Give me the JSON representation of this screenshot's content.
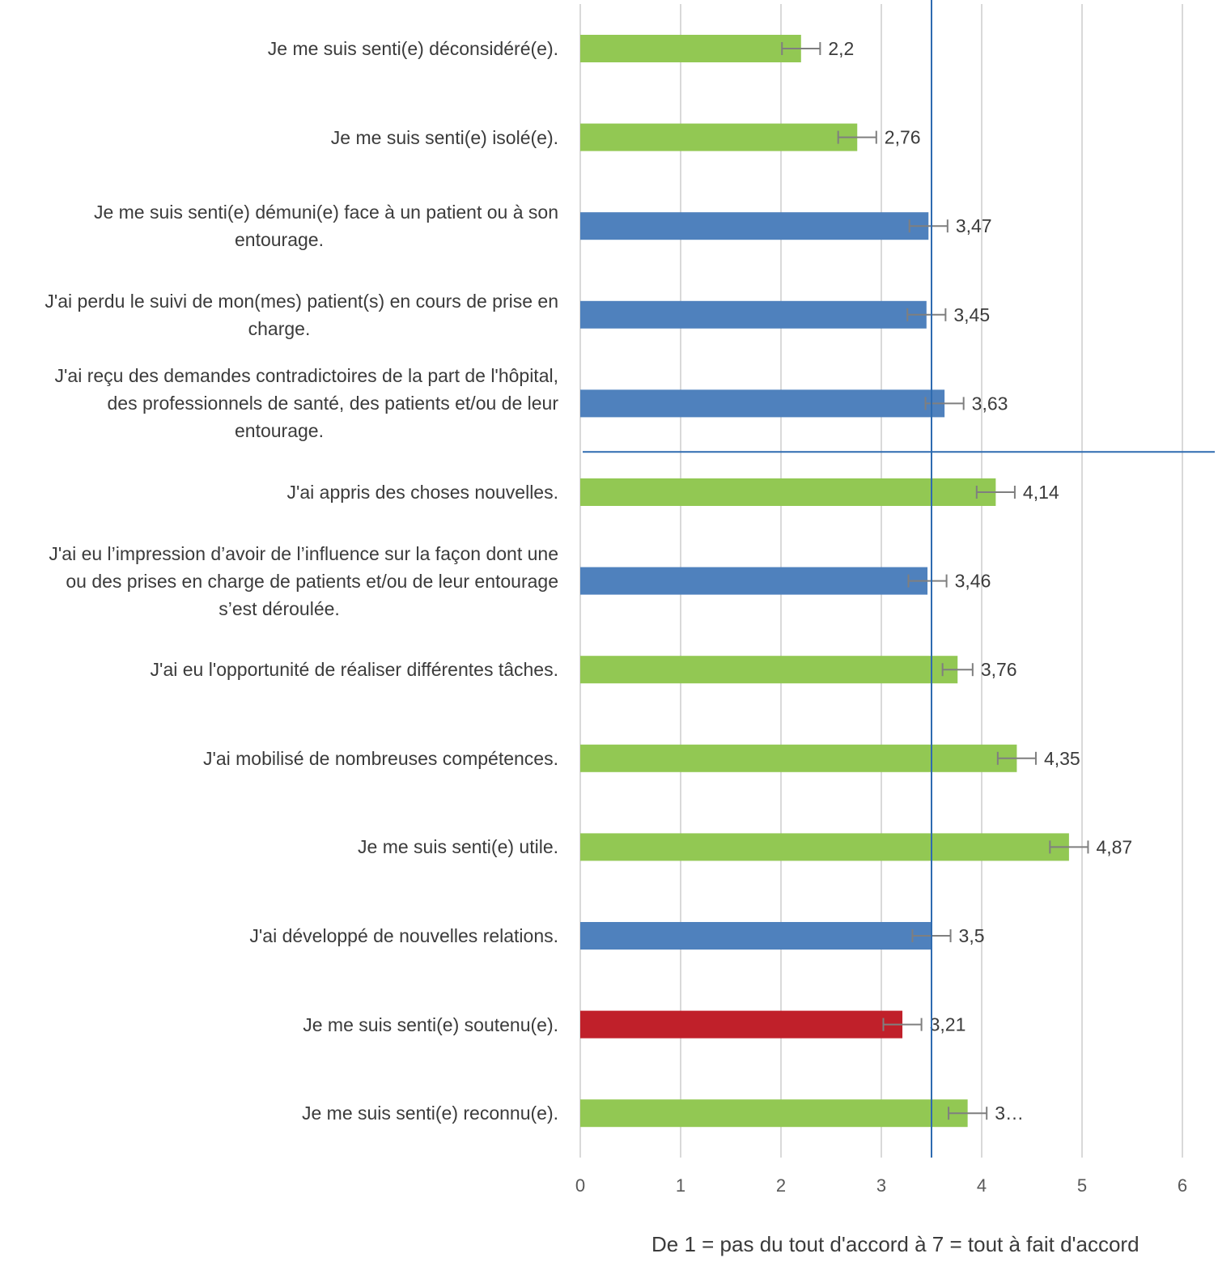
{
  "chart_data": {
    "type": "bar",
    "orientation": "horizontal",
    "categories": [
      [
        "Je me suis senti(e) déconsidéré(e)."
      ],
      [
        "Je me suis senti(e) isolé(e)."
      ],
      [
        "Je me suis senti(e) démuni(e) face à un patient ou à son",
        "entourage."
      ],
      [
        "J'ai perdu le suivi de mon(mes) patient(s) en cours de prise en",
        "charge."
      ],
      [
        "J'ai reçu des demandes contradictoires de la part de l'hôpital,",
        "des professionnels de santé, des patients et/ou de leur",
        "entourage."
      ],
      [
        "J'ai appris des choses nouvelles."
      ],
      [
        "J'ai eu l’impression d’avoir de l’influence sur la façon dont une",
        "ou des prises en charge de patients et/ou de leur entourage",
        "s’est déroulée."
      ],
      [
        "J'ai eu l'opportunité de réaliser différentes tâches."
      ],
      [
        "J'ai mobilisé de nombreuses compétences."
      ],
      [
        "Je me suis senti(e) utile."
      ],
      [
        "J'ai développé de nouvelles relations."
      ],
      [
        "Je me suis senti(e) soutenu(e)."
      ],
      [
        "Je me suis senti(e) reconnu(e)."
      ]
    ],
    "values": [
      2.2,
      2.76,
      3.47,
      3.45,
      3.63,
      4.14,
      3.46,
      3.76,
      4.35,
      4.87,
      3.5,
      3.21,
      3.86
    ],
    "value_labels": [
      "2,2",
      "2,76",
      "3,47",
      "3,45",
      "3,63",
      "4,14",
      "3,46",
      "3,76",
      "4,35",
      "4,87",
      "3,5",
      "3,21",
      "3…"
    ],
    "error": [
      0.19,
      0.19,
      0.19,
      0.19,
      0.19,
      0.19,
      0.19,
      0.15,
      0.19,
      0.19,
      0.19,
      0.19,
      0.19
    ],
    "bar_colors": [
      "#92c853",
      "#92c853",
      "#4f81bd",
      "#4f81bd",
      "#4f81bd",
      "#92c853",
      "#4f81bd",
      "#92c853",
      "#92c853",
      "#92c853",
      "#4f81bd",
      "#c0202a",
      "#92c853"
    ],
    "reference_value": 3.5,
    "divider_after_index": 4,
    "x_ticks": [
      "0",
      "1",
      "2",
      "3",
      "4",
      "5",
      "6"
    ],
    "xlim": [
      0,
      6
    ],
    "xlabel": "De 1 = pas du tout d'accord à 7 = tout à fait d'accord",
    "grid": true
  }
}
